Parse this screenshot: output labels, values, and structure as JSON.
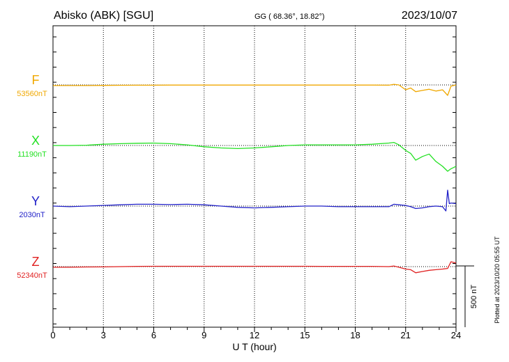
{
  "header": {
    "station": "Abisko (ABK)  [SGU]",
    "coords": "GG ( 68.36°,  18.82°)",
    "date": "2023/10/07"
  },
  "side_note": "Plotted at 2023/10/20 05:55 UT",
  "scale_label": "500 nT",
  "chart_data": {
    "type": "line",
    "xlabel": "U T (hour)",
    "xlim": [
      0,
      24
    ],
    "xticks": [
      "0",
      "3",
      "6",
      "9",
      "12",
      "15",
      "18",
      "21",
      "24"
    ],
    "scale_bar_nT": 500,
    "grid": true,
    "series": [
      {
        "name": "F",
        "baseline": "53560nT",
        "color": "#f0a800",
        "x": [
          0,
          1,
          2,
          3,
          4,
          5,
          6,
          7,
          8,
          9,
          10,
          11,
          12,
          13,
          14,
          15,
          16,
          17,
          18,
          19,
          20,
          20.3,
          20.6,
          21,
          21.3,
          21.6,
          22,
          22.4,
          22.8,
          23.2,
          23.5,
          23.7,
          24
        ],
        "values": [
          -5,
          -5,
          -5,
          -4,
          -3,
          -2,
          -2,
          -1,
          -1,
          -1,
          -1,
          -1,
          -1,
          -1,
          -1,
          -1,
          -1,
          -1,
          -1,
          -1,
          -2,
          5,
          0,
          -40,
          -25,
          -55,
          -45,
          -35,
          -50,
          -40,
          -85,
          -10,
          0
        ]
      },
      {
        "name": "X",
        "baseline": "11190nT",
        "color": "#22e022",
        "x": [
          0,
          1,
          2,
          3,
          4,
          5,
          6,
          7,
          8,
          9,
          10,
          11,
          12,
          13,
          14,
          15,
          16,
          17,
          18,
          19,
          20,
          20.3,
          20.6,
          21,
          21.3,
          21.6,
          22,
          22.4,
          22.8,
          23.2,
          23.5,
          23.7,
          24
        ],
        "values": [
          0,
          0,
          2,
          10,
          15,
          18,
          20,
          15,
          5,
          -10,
          -20,
          -25,
          -20,
          -10,
          0,
          5,
          5,
          5,
          5,
          10,
          20,
          25,
          5,
          -40,
          -65,
          -120,
          -90,
          -70,
          -130,
          -170,
          -210,
          -190,
          -170
        ]
      },
      {
        "name": "Y",
        "baseline": "2030nT",
        "color": "#2020c8",
        "x": [
          0,
          1,
          2,
          3,
          4,
          5,
          6,
          7,
          8,
          9,
          10,
          11,
          12,
          13,
          14,
          15,
          16,
          17,
          18,
          19,
          20,
          20.3,
          20.6,
          21,
          21.3,
          21.6,
          22,
          22.4,
          22.8,
          23.2,
          23.4,
          23.5,
          23.6,
          23.7,
          24
        ],
        "values": [
          0,
          -5,
          0,
          5,
          10,
          15,
          15,
          12,
          15,
          10,
          0,
          -10,
          -15,
          -10,
          -5,
          0,
          0,
          -5,
          -5,
          -5,
          -5,
          15,
          10,
          5,
          -5,
          -20,
          -15,
          -5,
          0,
          -5,
          -40,
          130,
          20,
          25,
          20
        ]
      },
      {
        "name": "Z",
        "baseline": "52340nT",
        "color": "#e02020",
        "x": [
          0,
          1,
          2,
          3,
          4,
          5,
          6,
          7,
          8,
          9,
          10,
          11,
          12,
          13,
          14,
          15,
          16,
          17,
          18,
          19,
          20,
          20.3,
          20.6,
          21,
          21.3,
          21.6,
          22,
          22.4,
          22.8,
          23.2,
          23.5,
          23.7,
          24
        ],
        "values": [
          -5,
          -5,
          -3,
          -2,
          0,
          2,
          3,
          3,
          3,
          3,
          3,
          3,
          3,
          3,
          3,
          3,
          2,
          2,
          2,
          2,
          0,
          5,
          -5,
          -20,
          -25,
          -50,
          -40,
          -30,
          -25,
          -20,
          -15,
          40,
          30
        ]
      }
    ]
  }
}
